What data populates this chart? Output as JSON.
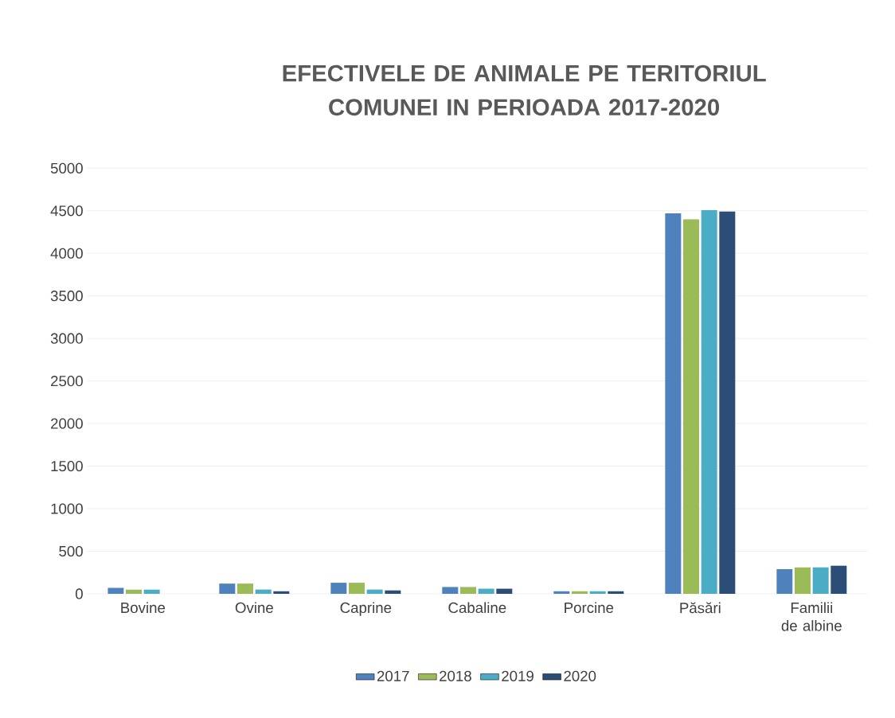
{
  "chart_data": {
    "type": "bar",
    "title": "EFECTIVELE DE ANIMALE PE TERITORIUL COMUNEI IN PERIOADA 2017-2020",
    "categories": [
      "Bovine",
      "Ovine",
      "Caprine",
      "Cabaline",
      "Porcine",
      "Păsări",
      "Familii de albine"
    ],
    "series": [
      {
        "name": "2017",
        "color": "#4f81bd",
        "values": [
          70,
          120,
          130,
          80,
          30,
          4470,
          290
        ]
      },
      {
        "name": "2018",
        "color": "#9bbb59",
        "values": [
          50,
          120,
          130,
          80,
          30,
          4400,
          310
        ]
      },
      {
        "name": "2019",
        "color": "#4bacc6",
        "values": [
          50,
          50,
          50,
          60,
          30,
          4510,
          310
        ]
      },
      {
        "name": "2020",
        "color": "#2c4d75",
        "values": [
          0,
          30,
          40,
          60,
          30,
          4490,
          330
        ]
      }
    ],
    "ylim": [
      0,
      5000
    ],
    "yticks": [
      0,
      500,
      1000,
      1500,
      2000,
      2500,
      3000,
      3500,
      4000,
      4500,
      5000
    ],
    "grid": "y",
    "legend": "bottom"
  }
}
